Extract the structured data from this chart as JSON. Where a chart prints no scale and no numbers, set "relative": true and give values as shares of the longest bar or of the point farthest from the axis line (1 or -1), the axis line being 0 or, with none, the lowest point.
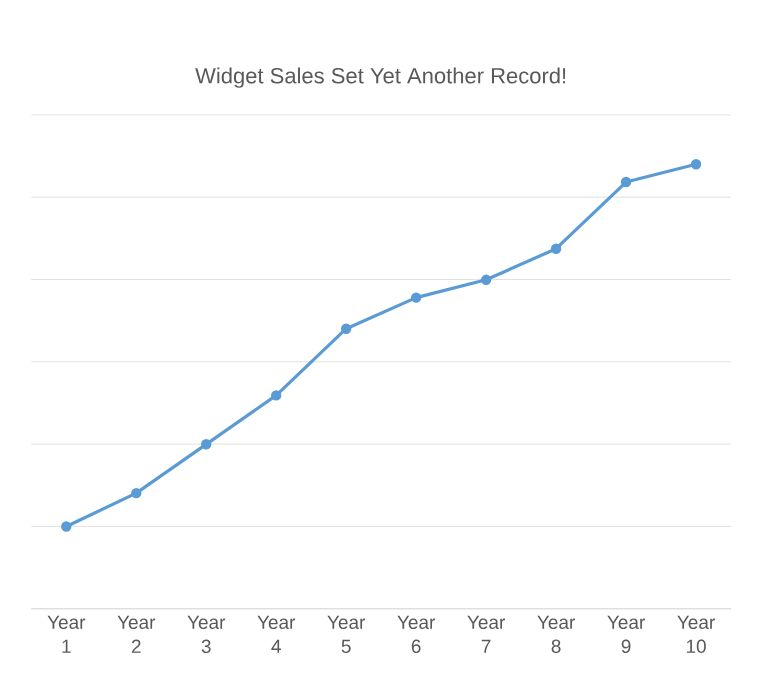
{
  "chart_data": {
    "type": "line",
    "title": "Widget Sales Set Yet Another Record!",
    "categories": [
      "Year 1",
      "Year 2",
      "Year 3",
      "Year 4",
      "Year 5",
      "Year 6",
      "Year 7",
      "Year 8",
      "Year 9",
      "Year 10"
    ],
    "series": [
      {
        "color": "#5b9bd5",
        "values": [
          0.185,
          0.26,
          0.37,
          0.48,
          0.63,
          0.7,
          0.74,
          0.81,
          0.96,
          1.0
        ]
      }
    ],
    "relative": true,
    "grid": "y",
    "marker": "circle",
    "line_style": "solid"
  }
}
